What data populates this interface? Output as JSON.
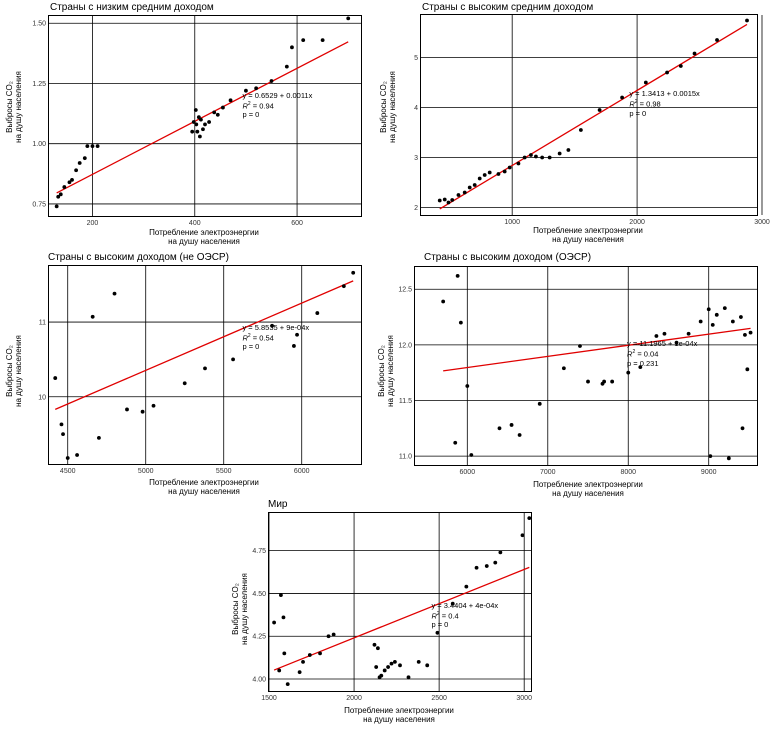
{
  "x_label_line1": "Потребление электроэнергии",
  "x_label_line2": "на душу населения",
  "y_label_line1": "Выбросы CO₂",
  "y_label_line2": "на душу населения",
  "colors": {
    "fit": "#e00000",
    "point": "#000000",
    "grid": "#000000"
  },
  "chart_data": [
    {
      "type": "scatter",
      "title": "Страны с низким средним доходом",
      "xlim": [
        115,
        725
      ],
      "ylim": [
        0.7,
        1.53
      ],
      "xticks": [
        200,
        400,
        600
      ],
      "yticks": [
        0.75,
        1.0,
        1.25,
        1.5
      ],
      "ytick_labels": [
        "0.75",
        "1.00",
        "1.25",
        "1.50"
      ],
      "grid": true,
      "fit": {
        "intercept": 0.6529,
        "slope": 0.0011
      },
      "annotation": {
        "eq": "y = 0.6529 + 0.0011x",
        "r2_label": "R",
        "r2": "= 0.94",
        "p": "p = 0"
      },
      "points": [
        [
          130,
          0.74
        ],
        [
          133,
          0.78
        ],
        [
          138,
          0.79
        ],
        [
          145,
          0.82
        ],
        [
          155,
          0.84
        ],
        [
          160,
          0.85
        ],
        [
          168,
          0.89
        ],
        [
          175,
          0.92
        ],
        [
          185,
          0.94
        ],
        [
          190,
          0.99
        ],
        [
          200,
          0.99
        ],
        [
          210,
          0.99
        ],
        [
          395,
          1.05
        ],
        [
          398,
          1.09
        ],
        [
          402,
          1.14
        ],
        [
          403,
          1.08
        ],
        [
          405,
          1.05
        ],
        [
          408,
          1.11
        ],
        [
          410,
          1.03
        ],
        [
          412,
          1.1
        ],
        [
          416,
          1.06
        ],
        [
          420,
          1.08
        ],
        [
          428,
          1.09
        ],
        [
          438,
          1.13
        ],
        [
          445,
          1.12
        ],
        [
          455,
          1.15
        ],
        [
          470,
          1.18
        ],
        [
          500,
          1.22
        ],
        [
          520,
          1.23
        ],
        [
          550,
          1.26
        ],
        [
          580,
          1.32
        ],
        [
          590,
          1.4
        ],
        [
          612,
          1.43
        ],
        [
          650,
          1.43
        ],
        [
          700,
          1.52
        ]
      ]
    },
    {
      "type": "scatter",
      "title": "Страны с высоким средним доходом",
      "xlim": [
        270,
        2960
      ],
      "ylim": [
        1.85,
        5.85
      ],
      "xticks": [
        1000,
        2000,
        3000
      ],
      "yticks": [
        2,
        3,
        4,
        5
      ],
      "ytick_labels": [
        "2",
        "3",
        "4",
        "5"
      ],
      "grid": true,
      "fit": {
        "intercept": 1.3413,
        "slope": 0.0015
      },
      "annotation": {
        "eq": "y = 1.3413 + 0.0015x",
        "r2_label": "R",
        "r2": "= 0.98",
        "p": "p = 0"
      },
      "points": [
        [
          420,
          2.14
        ],
        [
          460,
          2.16
        ],
        [
          490,
          2.1
        ],
        [
          520,
          2.15
        ],
        [
          570,
          2.25
        ],
        [
          620,
          2.3
        ],
        [
          660,
          2.4
        ],
        [
          700,
          2.45
        ],
        [
          740,
          2.58
        ],
        [
          780,
          2.65
        ],
        [
          820,
          2.7
        ],
        [
          890,
          2.67
        ],
        [
          940,
          2.72
        ],
        [
          980,
          2.8
        ],
        [
          1050,
          2.88
        ],
        [
          1100,
          3.0
        ],
        [
          1150,
          3.05
        ],
        [
          1190,
          3.02
        ],
        [
          1240,
          3.0
        ],
        [
          1300,
          3.0
        ],
        [
          1380,
          3.08
        ],
        [
          1450,
          3.15
        ],
        [
          1550,
          3.55
        ],
        [
          1700,
          3.95
        ],
        [
          1880,
          4.2
        ],
        [
          2070,
          4.5
        ],
        [
          2240,
          4.7
        ],
        [
          2350,
          4.83
        ],
        [
          2460,
          5.08
        ],
        [
          2640,
          5.35
        ],
        [
          2880,
          5.74
        ]
      ]
    },
    {
      "type": "scatter",
      "title": "Страны с высоким доходом (не ОЭСР)",
      "xlim": [
        4380,
        6380
      ],
      "ylim": [
        9.1,
        11.75
      ],
      "xticks": [
        4500,
        5000,
        5500,
        6000
      ],
      "yticks": [
        10,
        11
      ],
      "ytick_labels": [
        "10",
        "11"
      ],
      "grid": true,
      "fit": {
        "intercept": 5.8535,
        "slope": 0.0009
      },
      "annotation": {
        "eq": "y = 5.8535 + 9e-04x",
        "r2_label": "R",
        "r2": "= 0.54",
        "p": "p = 0"
      },
      "points": [
        [
          4420,
          10.25
        ],
        [
          4460,
          9.63
        ],
        [
          4470,
          9.5
        ],
        [
          4500,
          9.18
        ],
        [
          4560,
          9.22
        ],
        [
          4660,
          11.07
        ],
        [
          4700,
          9.45
        ],
        [
          4800,
          11.38
        ],
        [
          4880,
          9.83
        ],
        [
          4980,
          9.8
        ],
        [
          5050,
          9.88
        ],
        [
          5250,
          10.18
        ],
        [
          5380,
          10.38
        ],
        [
          5560,
          10.5
        ],
        [
          5810,
          10.95
        ],
        [
          5950,
          10.68
        ],
        [
          5970,
          10.83
        ],
        [
          6100,
          11.12
        ],
        [
          6270,
          11.48
        ],
        [
          6330,
          11.66
        ]
      ]
    },
    {
      "type": "scatter",
      "title": "Страны с высоким доходом (ОЭСР)",
      "xlim": [
        5350,
        9600
      ],
      "ylim": [
        10.92,
        12.7
      ],
      "xticks": [
        6000,
        7000,
        8000,
        9000
      ],
      "yticks": [
        11.0,
        11.5,
        12.0,
        12.5
      ],
      "ytick_labels": [
        "11.0",
        "11.5",
        "12.0",
        "12.5"
      ],
      "grid": true,
      "fit": {
        "intercept": 11.1965,
        "slope": 0.0001
      },
      "annotation": {
        "eq": "y = 11.1965 + 1e-04x",
        "r2_label": "R",
        "r2": "= 0.04",
        "p": "p = 0.231"
      },
      "points": [
        [
          5700,
          12.39
        ],
        [
          5850,
          11.12
        ],
        [
          5880,
          12.62
        ],
        [
          5920,
          12.2
        ],
        [
          6000,
          11.63
        ],
        [
          6050,
          11.01
        ],
        [
          6400,
          11.25
        ],
        [
          6550,
          11.28
        ],
        [
          6650,
          11.19
        ],
        [
          6900,
          11.47
        ],
        [
          7200,
          11.79
        ],
        [
          7400,
          11.99
        ],
        [
          7500,
          11.67
        ],
        [
          7680,
          11.65
        ],
        [
          7700,
          11.67
        ],
        [
          7800,
          11.67
        ],
        [
          8000,
          11.75
        ],
        [
          8150,
          11.8
        ],
        [
          8350,
          12.08
        ],
        [
          8450,
          12.1
        ],
        [
          8600,
          12.02
        ],
        [
          8750,
          12.1
        ],
        [
          8900,
          12.21
        ],
        [
          9000,
          12.32
        ],
        [
          9020,
          11.0
        ],
        [
          9050,
          12.18
        ],
        [
          9100,
          12.27
        ],
        [
          9200,
          12.33
        ],
        [
          9250,
          10.98
        ],
        [
          9300,
          12.21
        ],
        [
          9400,
          12.25
        ],
        [
          9420,
          11.25
        ],
        [
          9450,
          12.09
        ],
        [
          9480,
          11.78
        ],
        [
          9520,
          12.11
        ]
      ]
    },
    {
      "type": "scatter",
      "title": "Мир",
      "xlim": [
        1500,
        3040
      ],
      "ylim": [
        3.93,
        4.97
      ],
      "xticks": [
        1500,
        2000,
        2500,
        3000
      ],
      "yticks": [
        4.0,
        4.25,
        4.5,
        4.75
      ],
      "ytick_labels": [
        "4.00",
        "4.25",
        "4.50",
        "4.75"
      ],
      "grid": true,
      "fit": {
        "intercept": 3.4404,
        "slope": 0.0004
      },
      "annotation": {
        "eq": "y = 3.4404 + 4e-04x",
        "r2_label": "R",
        "r2": "= 0.4",
        "p": "p = 0"
      },
      "points": [
        [
          1530,
          4.33
        ],
        [
          1560,
          4.05
        ],
        [
          1570,
          4.49
        ],
        [
          1585,
          4.36
        ],
        [
          1590,
          4.15
        ],
        [
          1610,
          3.97
        ],
        [
          1680,
          4.04
        ],
        [
          1700,
          4.1
        ],
        [
          1740,
          4.14
        ],
        [
          1800,
          4.15
        ],
        [
          1850,
          4.25
        ],
        [
          1880,
          4.26
        ],
        [
          2120,
          4.2
        ],
        [
          2130,
          4.07
        ],
        [
          2140,
          4.18
        ],
        [
          2150,
          4.01
        ],
        [
          2160,
          4.02
        ],
        [
          2180,
          4.05
        ],
        [
          2200,
          4.07
        ],
        [
          2220,
          4.09
        ],
        [
          2240,
          4.1
        ],
        [
          2270,
          4.08
        ],
        [
          2320,
          4.01
        ],
        [
          2380,
          4.1
        ],
        [
          2430,
          4.08
        ],
        [
          2490,
          4.27
        ],
        [
          2580,
          4.44
        ],
        [
          2660,
          4.54
        ],
        [
          2720,
          4.65
        ],
        [
          2780,
          4.66
        ],
        [
          2830,
          4.68
        ],
        [
          2860,
          4.74
        ],
        [
          2990,
          4.84
        ],
        [
          3030,
          4.94
        ]
      ]
    }
  ]
}
